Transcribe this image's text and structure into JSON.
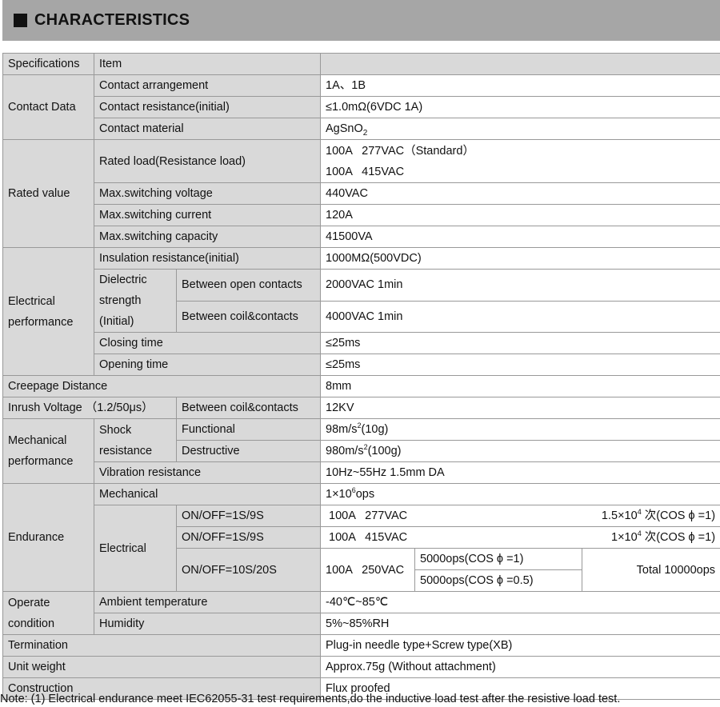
{
  "title": "CHARACTERISTICS",
  "header": {
    "spec": "Specifications",
    "item": "Item",
    "value": ""
  },
  "contact": {
    "label": "Contact Data",
    "arrangement": "Contact arrangement",
    "arrangement_v": "1A、1B",
    "resistance": "Contact resistance(initial)",
    "resistance_v": "≤1.0mΩ(6VDC 1A)",
    "material": "Contact material",
    "material_v": "AgSnO",
    "material_sub": "2"
  },
  "rated": {
    "label": "Rated value",
    "load": "Rated load(Resistance load)",
    "load_v1": "100A   277VAC（Standard）",
    "load_v2": "100A   415VAC",
    "voltage": "Max.switching voltage",
    "voltage_v": "440VAC",
    "current": "Max.switching current",
    "current_v": "120A",
    "capacity": "Max.switching capacity",
    "capacity_v": "41500VA"
  },
  "electrical": {
    "label": "Electrical performance",
    "insulation": "Insulation resistance(initial)",
    "insulation_v": "1000MΩ(500VDC)",
    "dielectric": "Dielectric strength (Initial)",
    "open": "Between open contacts",
    "open_v": "2000VAC 1min",
    "coil": "Between coil&contacts",
    "coil_v": "4000VAC 1min",
    "closing": "Closing time",
    "closing_v": "≤25ms",
    "opening": "Opening time",
    "opening_v": "≤25ms"
  },
  "creepage": {
    "label": "Creepage Distance",
    "value": "8mm"
  },
  "inrush": {
    "label": "Inrush Voltage （1.2/50μs）",
    "item": "Between coil&contacts",
    "value": "12KV"
  },
  "mechanical": {
    "label": "Mechanical performance",
    "shock": "Shock resistance",
    "functional": "Functional",
    "functional_v": "98m/s",
    "functional_unit": "(10g)",
    "destructive": "Destructive",
    "destructive_v": "980m/s",
    "destructive_unit": "(100g)",
    "sq": "2",
    "vibration": "Vibration resistance",
    "vibration_v": "10Hz~55Hz 1.5mm DA"
  },
  "endurance": {
    "label": "Endurance",
    "mech": "Mechanical",
    "mech_v": "1×10",
    "mech_exp": "6",
    "mech_unit": "ops",
    "elec": "Electrical",
    "r1_cond": "ON/OFF=1S/9S",
    "r1_load": "100A   277VAC",
    "r1_life": "1.5×10",
    "r1_exp": "4",
    "r1_tail": " 次(COS ϕ =1)",
    "r2_cond": "ON/OFF=1S/9S",
    "r2_load": "100A   415VAC",
    "r2_life": "1×10",
    "r2_exp": "4",
    "r2_tail": " 次(COS ϕ =1)",
    "r3_cond": "ON/OFF=10S/20S",
    "r3_load": "100A   250VAC",
    "r3_a": "5000ops(COS ϕ =1)",
    "r3_b": "5000ops(COS ϕ =0.5)",
    "r3_total": "Total 10000ops"
  },
  "operate": {
    "label": "Operate condition",
    "ambient": "Ambient temperature",
    "ambient_v": "-40℃~85℃",
    "humidity": "Humidity",
    "humidity_v": "5%~85%RH"
  },
  "termination": {
    "label": "Termination",
    "value": "Plug-in needle type+Screw type(XB)"
  },
  "weight": {
    "label": "Unit weight",
    "value": "Approx.75g (Without attachment)"
  },
  "construction": {
    "label": "Construction",
    "value": "Flux proofed"
  },
  "note": "Note: (1) Electrical endurance meet IEC62055-31 test requirements,do the inductive load test after the resistive load test."
}
